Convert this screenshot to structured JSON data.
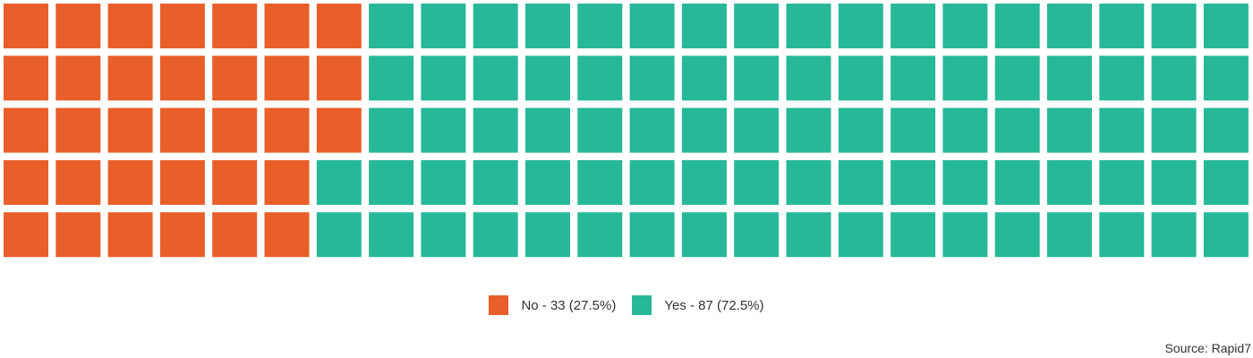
{
  "chart_data": {
    "type": "waffle",
    "rows": 5,
    "columns": 24,
    "total": 120,
    "series": [
      {
        "name": "No",
        "value": 33,
        "percent": 27.5,
        "color": "#e85f29",
        "legend_label": "No - 33 (27.5%)"
      },
      {
        "name": "Yes",
        "value": 87,
        "percent": 72.5,
        "color": "#27b898",
        "legend_label": "Yes - 87 (72.5%)"
      }
    ],
    "fill_order": "column-major, top-to-bottom",
    "legend_position": "bottom-center"
  },
  "source_text": "Source: Rapid7"
}
